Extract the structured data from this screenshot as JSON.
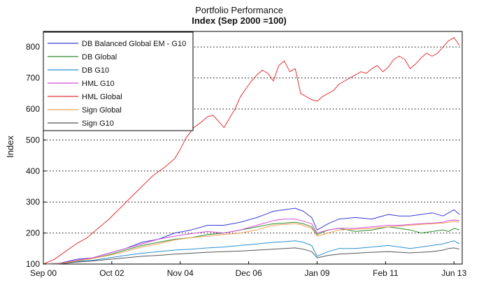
{
  "chart_data": {
    "type": "line",
    "title": "Portfolio Performance",
    "subtitle": "Index (Sep 2000 =100)",
    "xlabel": "",
    "ylabel": "Index",
    "xlim": [
      0,
      153
    ],
    "ylim": [
      100,
      850
    ],
    "x_ticks": [
      {
        "pos": 0,
        "label": "Sep 00"
      },
      {
        "pos": 25,
        "label": "Oct 02"
      },
      {
        "pos": 50,
        "label": "Nov 04"
      },
      {
        "pos": 75,
        "label": "Dec 06"
      },
      {
        "pos": 100,
        "label": "Jan 09"
      },
      {
        "pos": 125,
        "label": "Feb 11"
      },
      {
        "pos": 150,
        "label": "Jun 13"
      }
    ],
    "y_ticks": [
      100,
      200,
      300,
      400,
      500,
      600,
      700,
      800
    ],
    "grid": "horizontal dotted",
    "legend_position": "top-left",
    "series": [
      {
        "name": "DB Balanced Global EM - G10",
        "color": "#3a3ad6",
        "x": [
          0,
          6,
          12,
          18,
          24,
          30,
          36,
          42,
          48,
          54,
          60,
          66,
          72,
          78,
          84,
          88,
          92,
          95,
          98,
          100,
          104,
          108,
          114,
          120,
          126,
          130,
          134,
          138,
          142,
          146,
          148,
          150,
          152
        ],
        "y": [
          100,
          103,
          115,
          120,
          135,
          150,
          170,
          180,
          200,
          210,
          225,
          225,
          235,
          250,
          270,
          275,
          280,
          270,
          250,
          210,
          230,
          245,
          250,
          245,
          260,
          255,
          255,
          260,
          265,
          255,
          265,
          275,
          260
        ]
      },
      {
        "name": "DB Global",
        "color": "#2e8b2e",
        "x": [
          0,
          6,
          12,
          18,
          24,
          30,
          36,
          42,
          48,
          54,
          60,
          66,
          72,
          78,
          84,
          88,
          92,
          95,
          98,
          100,
          104,
          108,
          114,
          120,
          126,
          130,
          134,
          138,
          142,
          146,
          148,
          150,
          152
        ],
        "y": [
          100,
          102,
          110,
          118,
          130,
          145,
          160,
          170,
          180,
          185,
          195,
          200,
          210,
          220,
          230,
          232,
          235,
          230,
          220,
          195,
          210,
          215,
          205,
          210,
          220,
          215,
          210,
          200,
          205,
          210,
          205,
          215,
          210
        ]
      },
      {
        "name": "DB G10",
        "color": "#2a8fd0",
        "x": [
          0,
          6,
          12,
          18,
          24,
          30,
          36,
          42,
          48,
          54,
          60,
          66,
          72,
          78,
          84,
          88,
          92,
          95,
          98,
          100,
          104,
          108,
          114,
          120,
          126,
          130,
          134,
          138,
          142,
          146,
          148,
          150,
          152
        ],
        "y": [
          100,
          101,
          108,
          112,
          120,
          128,
          135,
          140,
          145,
          148,
          152,
          155,
          160,
          165,
          170,
          172,
          175,
          170,
          160,
          125,
          140,
          150,
          150,
          155,
          160,
          155,
          150,
          155,
          160,
          165,
          170,
          175,
          165
        ]
      },
      {
        "name": "HML G10",
        "color": "#d44cd4",
        "x": [
          0,
          6,
          12,
          18,
          24,
          30,
          36,
          42,
          48,
          54,
          60,
          66,
          72,
          78,
          84,
          88,
          92,
          95,
          98,
          100,
          104,
          108,
          114,
          120,
          126,
          130,
          134,
          138,
          142,
          146,
          148,
          150,
          152
        ],
        "y": [
          100,
          103,
          112,
          120,
          135,
          150,
          165,
          180,
          190,
          198,
          205,
          200,
          210,
          225,
          240,
          245,
          245,
          238,
          230,
          200,
          210,
          215,
          215,
          220,
          225,
          225,
          228,
          230,
          232,
          235,
          240,
          242,
          240
        ]
      },
      {
        "name": "HML Global",
        "color": "#e53030",
        "x": [
          0,
          4,
          8,
          12,
          16,
          20,
          24,
          28,
          32,
          36,
          40,
          44,
          48,
          50,
          52,
          55,
          58,
          60,
          62,
          64,
          66,
          68,
          70,
          72,
          74,
          76,
          78,
          80,
          82,
          84,
          86,
          88,
          90,
          92,
          94,
          96,
          98,
          100,
          102,
          104,
          106,
          108,
          110,
          112,
          114,
          116,
          118,
          120,
          122,
          124,
          126,
          128,
          130,
          132,
          134,
          136,
          138,
          140,
          142,
          144,
          146,
          148,
          150,
          152
        ],
        "y": [
          100,
          115,
          140,
          165,
          185,
          215,
          245,
          280,
          315,
          350,
          385,
          410,
          440,
          470,
          505,
          540,
          560,
          575,
          580,
          560,
          540,
          570,
          600,
          640,
          665,
          690,
          710,
          725,
          715,
          690,
          740,
          755,
          720,
          730,
          650,
          640,
          630,
          625,
          640,
          650,
          660,
          680,
          690,
          700,
          710,
          720,
          715,
          730,
          740,
          720,
          735,
          760,
          770,
          760,
          730,
          745,
          765,
          780,
          770,
          780,
          800,
          820,
          830,
          805
        ]
      },
      {
        "name": "Sign Global",
        "color": "#f0a050",
        "x": [
          0,
          6,
          12,
          18,
          24,
          30,
          36,
          42,
          48,
          54,
          60,
          66,
          72,
          78,
          84,
          88,
          92,
          95,
          98,
          100,
          104,
          108,
          114,
          120,
          126,
          130,
          134,
          138,
          142,
          146,
          148,
          150,
          152
        ],
        "y": [
          100,
          102,
          110,
          118,
          128,
          140,
          155,
          165,
          178,
          185,
          190,
          195,
          200,
          210,
          225,
          228,
          230,
          225,
          215,
          190,
          200,
          210,
          212,
          215,
          220,
          222,
          225,
          228,
          230,
          232,
          235,
          238,
          235
        ]
      },
      {
        "name": "Sign G10",
        "color": "#555555",
        "x": [
          0,
          6,
          12,
          18,
          24,
          30,
          36,
          42,
          48,
          54,
          60,
          66,
          72,
          78,
          84,
          88,
          92,
          95,
          98,
          100,
          104,
          108,
          114,
          120,
          126,
          130,
          134,
          138,
          142,
          146,
          148,
          150,
          152
        ],
        "y": [
          100,
          101,
          106,
          110,
          115,
          120,
          125,
          128,
          132,
          135,
          138,
          140,
          142,
          145,
          148,
          150,
          152,
          148,
          140,
          120,
          128,
          132,
          135,
          138,
          140,
          138,
          136,
          138,
          140,
          145,
          150,
          152,
          148
        ]
      }
    ]
  }
}
